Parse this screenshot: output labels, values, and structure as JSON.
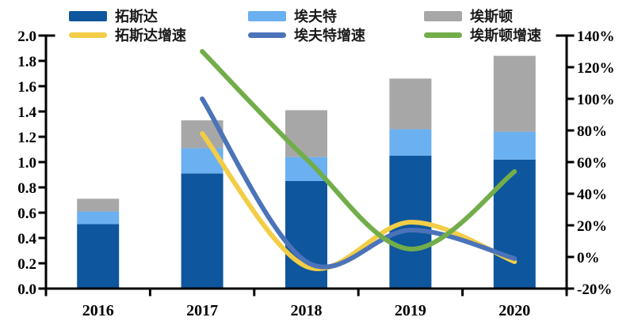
{
  "chart_data": {
    "type": "bar+line",
    "title": "",
    "categories": [
      "2016",
      "2017",
      "2018",
      "2019",
      "2020"
    ],
    "bar_series": [
      {
        "name": "拓斯达",
        "color": "#0E569D",
        "values": [
          0.51,
          0.91,
          0.85,
          1.05,
          1.02
        ]
      },
      {
        "name": "埃夫特",
        "color": "#6BB0F0",
        "values": [
          0.1,
          0.2,
          0.19,
          0.21,
          0.22
        ]
      },
      {
        "name": "埃斯顿",
        "color": "#A7A7A7",
        "values": [
          0.1,
          0.22,
          0.37,
          0.4,
          0.6
        ]
      }
    ],
    "line_series": [
      {
        "name": "拓斯达增速",
        "color": "#F3CD45",
        "values": [
          null,
          78,
          -6,
          22,
          -3
        ]
      },
      {
        "name": "埃夫特增速",
        "color": "#4B73B9",
        "values": [
          null,
          100,
          -3,
          17,
          -1
        ]
      },
      {
        "name": "埃斯顿增速",
        "color": "#72AD4A",
        "values": [
          null,
          130,
          62,
          5,
          54
        ]
      }
    ],
    "left_axis": {
      "min": 0.0,
      "max": 2.0,
      "step": 0.2,
      "tick_labels": [
        "0.0",
        "0.2",
        "0.4",
        "0.6",
        "0.8",
        "1.0",
        "1.2",
        "1.4",
        "1.6",
        "1.8",
        "2.0"
      ]
    },
    "right_axis": {
      "min": -20,
      "max": 140,
      "step": 20,
      "unit": "%",
      "tick_labels": [
        "-20%",
        "0%",
        "20%",
        "40%",
        "60%",
        "80%",
        "100%",
        "120%",
        "140%"
      ]
    },
    "grid": "off",
    "legend_position": "top",
    "axis_color": "#000000",
    "background": "#ffffff"
  }
}
